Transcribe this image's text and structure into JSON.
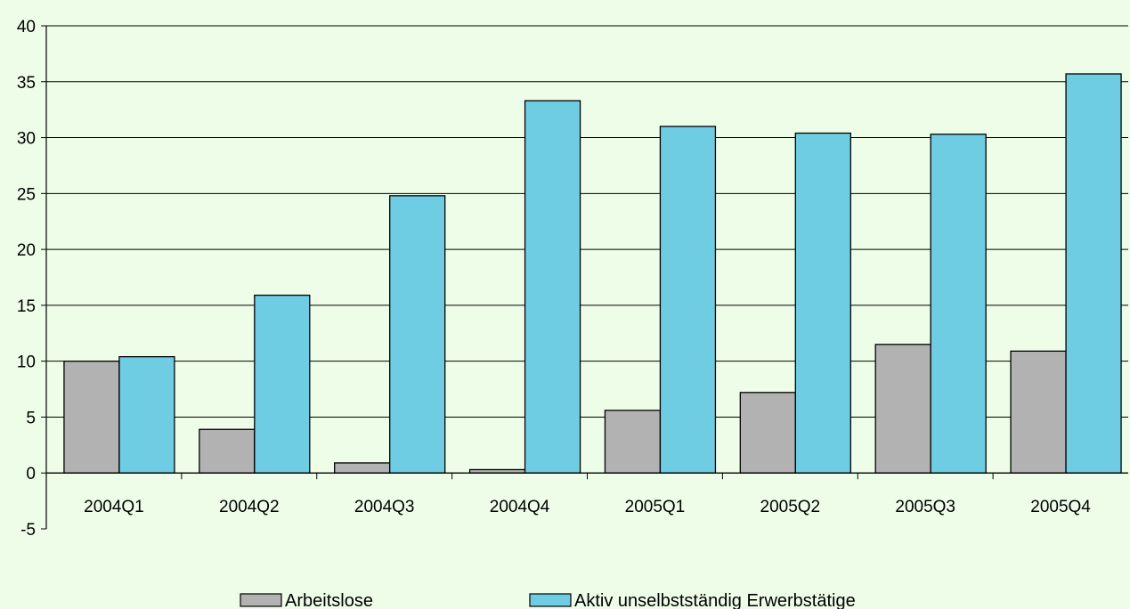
{
  "chart_data": {
    "type": "bar",
    "categories": [
      "2004Q1",
      "2004Q2",
      "2004Q3",
      "2004Q4",
      "2005Q1",
      "2005Q2",
      "2005Q3",
      "2005Q4"
    ],
    "series": [
      {
        "name": "Arbeitslose",
        "color": "#b2b2b2",
        "values": [
          10.0,
          3.9,
          0.9,
          0.3,
          5.6,
          7.2,
          11.5,
          10.9
        ]
      },
      {
        "name": "Aktiv unselbstständig Erwerbstätige",
        "color": "#6fcde3",
        "values": [
          10.4,
          15.9,
          24.8,
          33.3,
          31.0,
          30.4,
          30.3,
          35.7
        ]
      }
    ],
    "ylim": [
      -5,
      40
    ],
    "yticks": [
      -5,
      0,
      5,
      10,
      15,
      20,
      25,
      30,
      35,
      40
    ],
    "grid": true,
    "legend": "bottom",
    "background": "#eefde8"
  }
}
